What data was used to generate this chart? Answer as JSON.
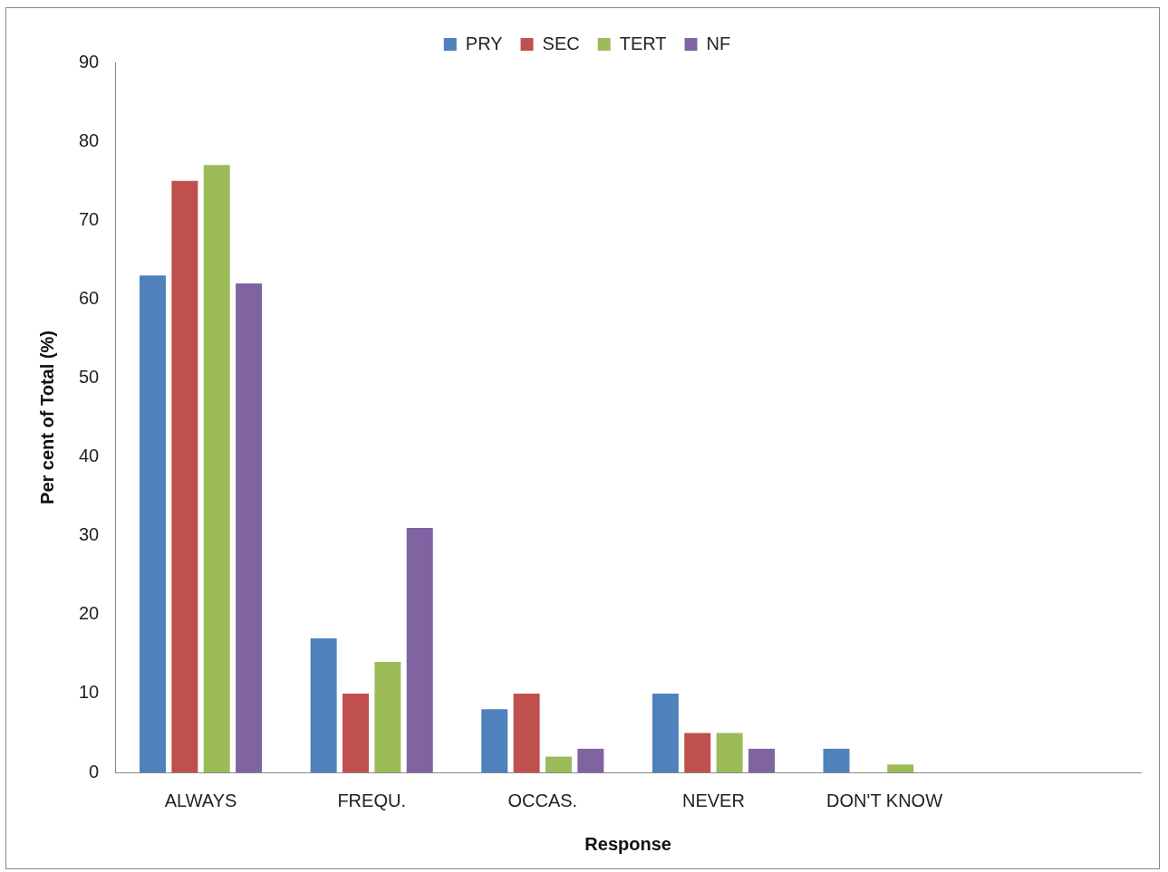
{
  "chart_data": {
    "type": "bar",
    "xlabel": "Response",
    "ylabel": "Per cent of Total (%)",
    "categories": [
      "ALWAYS",
      "FREQU.",
      "OCCAS.",
      "NEVER",
      "DON'T KNOW",
      null
    ],
    "series": [
      {
        "name": "PRY",
        "color": "#4f81bd",
        "values": [
          63,
          17,
          8,
          10,
          3,
          null
        ]
      },
      {
        "name": "SEC",
        "color": "#c0504d",
        "values": [
          75,
          10,
          10,
          5,
          0,
          null
        ]
      },
      {
        "name": "TERT",
        "color": "#9bbb59",
        "values": [
          77,
          14,
          2,
          5,
          1,
          null
        ]
      },
      {
        "name": "NF",
        "color": "#8064a2",
        "values": [
          62,
          31,
          3,
          3,
          0,
          null
        ]
      }
    ],
    "ylim": [
      0,
      90
    ],
    "yticks": [
      0,
      10,
      20,
      30,
      40,
      50,
      60,
      70,
      80,
      90
    ],
    "grid": false,
    "legend": "top"
  }
}
